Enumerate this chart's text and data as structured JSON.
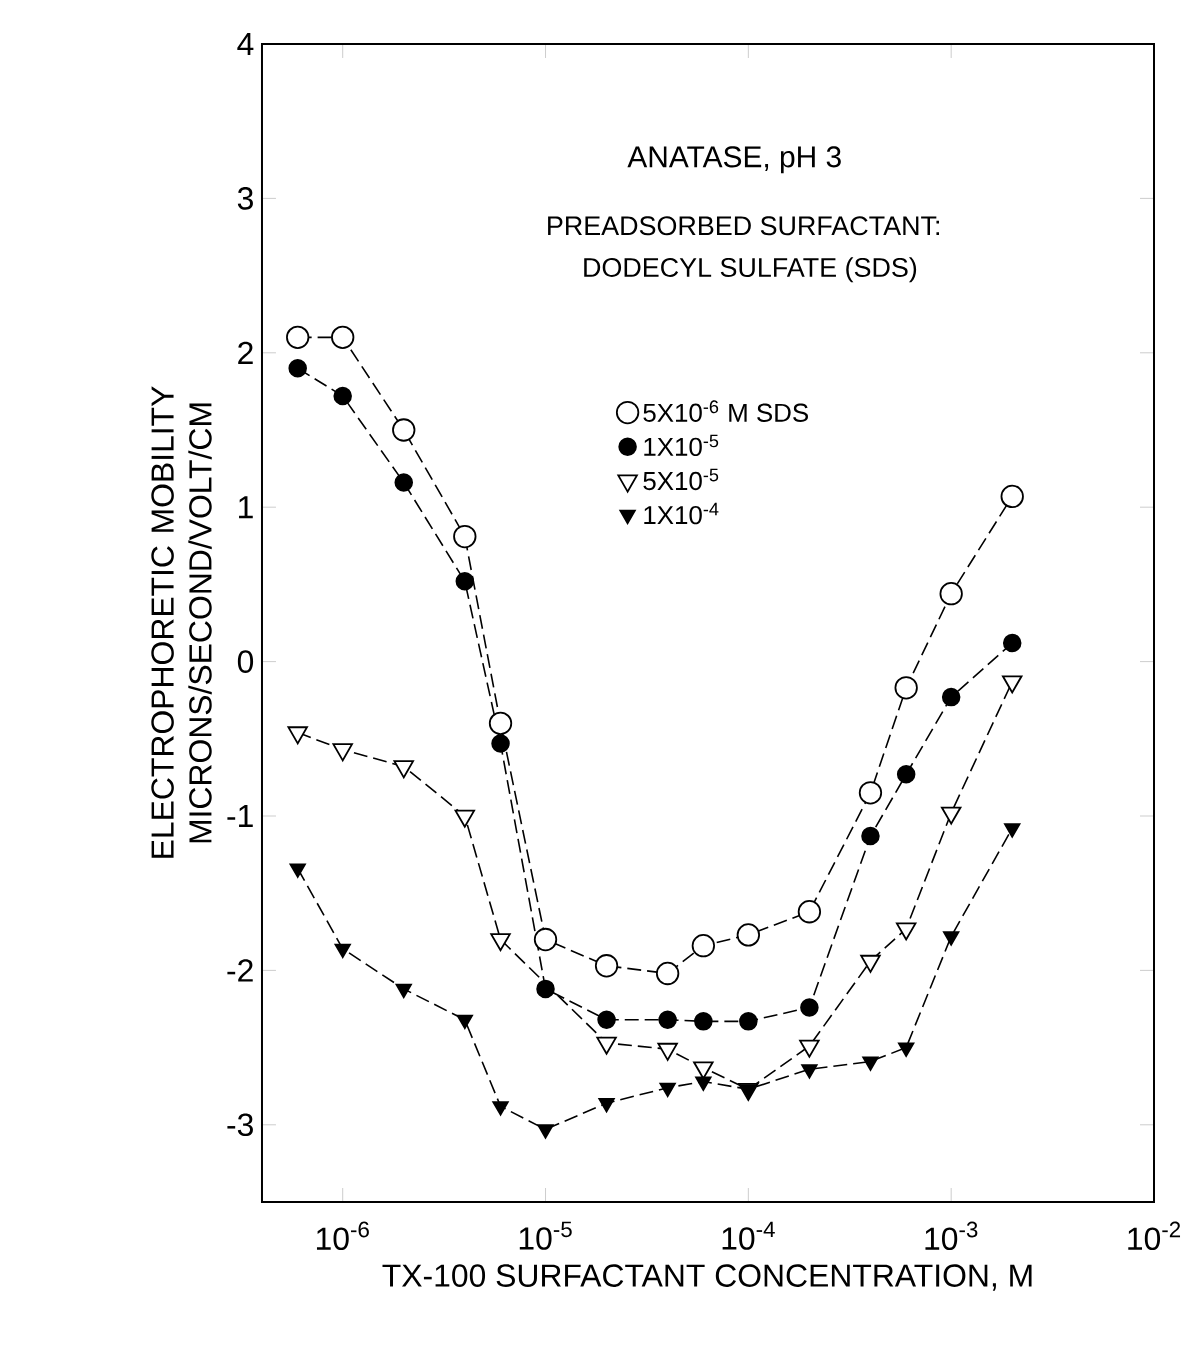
{
  "chart_data": {
    "type": "line",
    "xlabel": "TX-100 SURFACTANT CONCENTRATION, M",
    "ylabel": "ELECTROPHORETIC MOBILITY MICRONS/SECOND/VOLT/CM",
    "annotations": [
      "ANATASE, pH 3",
      "PREADSORBED SURFACTANT:",
      "DODECYL SULFATE (SDS)"
    ],
    "log": "x",
    "xlim": [
      4e-07,
      0.01
    ],
    "ylim": [
      -3.5,
      4
    ],
    "xticks": [
      {
        "value": 1e-06,
        "label": "10$^{-6}$"
      },
      {
        "value": 1e-05,
        "label": "10$^{-5}$"
      },
      {
        "value": 0.0001,
        "label": "10$^{-4}$"
      },
      {
        "value": 0.001,
        "label": "10$^{-3}$"
      },
      {
        "value": 0.01,
        "label": "10$^{-2}$"
      }
    ],
    "yticks": [
      -3,
      -2,
      -1,
      0,
      1,
      2,
      3,
      4
    ],
    "x": [
      6e-07,
      1e-06,
      2e-06,
      4e-06,
      6e-06,
      1e-05,
      2e-05,
      4e-05,
      6e-05,
      0.0001,
      0.0002,
      0.0004,
      0.0006,
      0.001,
      0.002
    ],
    "legend": "top right",
    "line_style": "dashed",
    "grid": false,
    "series": [
      {
        "name": "5X10$^{-6}$ M SDS",
        "color": "#ffffff",
        "marker": "circle",
        "values": [
          2.1,
          2.1,
          1.5,
          0.81,
          -0.4,
          -1.8,
          -1.97,
          -2.02,
          -1.84,
          -1.77,
          -1.62,
          -0.85,
          -0.17,
          0.44,
          1.07
        ]
      },
      {
        "name": "1X10$^{-5}$",
        "color": "#000000",
        "marker": "circle",
        "values": [
          1.9,
          1.72,
          1.16,
          0.52,
          -0.53,
          -2.12,
          -2.32,
          -2.32,
          -2.33,
          -2.33,
          -2.24,
          -1.13,
          -0.73,
          -0.23,
          0.12
        ]
      },
      {
        "name": "5X10$^{-5}$",
        "color": "#ffffff",
        "marker": "triangle",
        "values": [
          -0.46,
          -0.57,
          -0.68,
          -1.0,
          -1.8,
          null,
          -2.47,
          -2.51,
          -2.63,
          -2.77,
          -2.49,
          -1.94,
          -1.73,
          -0.98,
          -0.13
        ]
      },
      {
        "name": "1X10$^{-4}$",
        "color": "#000000",
        "marker": "triangle",
        "values": [
          -1.34,
          -1.86,
          -2.12,
          -2.32,
          -2.88,
          -3.03,
          -2.86,
          -2.76,
          -2.72,
          -2.77,
          -2.64,
          -2.59,
          -2.5,
          -1.78,
          -1.08
        ]
      }
    ]
  }
}
